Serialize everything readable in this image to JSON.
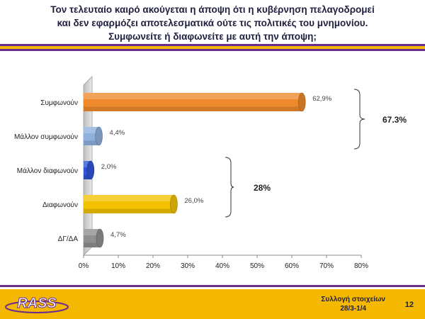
{
  "header": {
    "title_lines": [
      "Τον τελευταίο καιρό ακούγεται η άποψη ότι η κυβέρνηση πελαγοδρομεί",
      "και δεν εφαρμόζει αποτελεσματικά ούτε τις πολιτικές του μνημονίου.",
      "Συμφωνείτε ή διαφωνείτε με αυτή την άποψη;"
    ]
  },
  "chart_data": {
    "type": "bar",
    "orientation": "horizontal",
    "categories": [
      "Συμφωνούν",
      "Μάλλον συμφωνούν",
      "Μάλλον διαφωνούν",
      "Διαφωνούν",
      "ΔΓ/ΔΑ"
    ],
    "values": [
      62.9,
      4.4,
      2.0,
      26.0,
      4.7
    ],
    "value_labels": [
      "62,9%",
      "4,4%",
      "2,0%",
      "26,0%",
      "4,7%"
    ],
    "colors": [
      "#ee8a2c",
      "#8fb0dc",
      "#2f55d8",
      "#f2c200",
      "#8f8f8f"
    ],
    "xlim": [
      0,
      80
    ],
    "x_ticks": [
      "0%",
      "10%",
      "20%",
      "30%",
      "40%",
      "50%",
      "60%",
      "70%",
      "80%"
    ],
    "xlabel": "",
    "ylabel": "",
    "annotations": [
      {
        "text": "67.3%",
        "groups": [
          0,
          1
        ]
      },
      {
        "text": "28%",
        "groups": [
          2,
          3
        ]
      }
    ]
  },
  "footer": {
    "logo_text": "RASS",
    "note_lines": [
      "Συλλογή στοιχείων",
      "28/3-1/4"
    ],
    "page_number": "12"
  }
}
